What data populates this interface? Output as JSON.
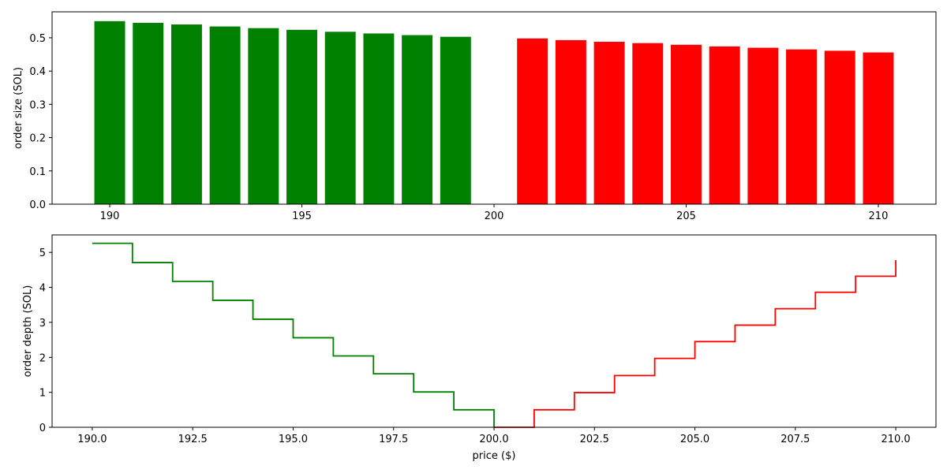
{
  "chart_data": [
    {
      "type": "bar",
      "title": "",
      "xlabel": "",
      "ylabel": "order size (SOL)",
      "xlim": [
        188.5,
        211.5
      ],
      "ylim": [
        0,
        0.578
      ],
      "xticks": [
        190,
        195,
        200,
        205,
        210
      ],
      "xtick_labels": [
        "190",
        "195",
        "200",
        "205",
        "210"
      ],
      "yticks": [
        0.0,
        0.1,
        0.2,
        0.3,
        0.4,
        0.5
      ],
      "ytick_labels": [
        "0.0",
        "0.1",
        "0.2",
        "0.3",
        "0.4",
        "0.5"
      ],
      "grid": false,
      "bar_width": 0.8,
      "series": [
        {
          "side": "bid",
          "color": "#008000",
          "x": [
            190,
            191,
            192,
            193,
            194,
            195,
            196,
            197,
            198,
            199
          ],
          "values": [
            0.55,
            0.545,
            0.54,
            0.534,
            0.529,
            0.524,
            0.518,
            0.513,
            0.508,
            0.503
          ]
        },
        {
          "side": "ask",
          "color": "#ff0000",
          "x": [
            201,
            202,
            203,
            204,
            205,
            206,
            207,
            208,
            209,
            210
          ],
          "values": [
            0.498,
            0.493,
            0.488,
            0.484,
            0.479,
            0.474,
            0.47,
            0.465,
            0.461,
            0.456
          ]
        }
      ]
    },
    {
      "type": "line",
      "subtype": "step",
      "title": "",
      "xlabel": "price ($)",
      "ylabel": "order depth (SOL)",
      "xlim": [
        189.0,
        211.0
      ],
      "ylim": [
        0,
        5.5
      ],
      "xticks": [
        190.0,
        192.5,
        195.0,
        197.5,
        200.0,
        202.5,
        205.0,
        207.5,
        210.0
      ],
      "xtick_labels": [
        "190.0",
        "192.5",
        "195.0",
        "197.5",
        "200.0",
        "202.5",
        "205.0",
        "207.5",
        "210.0"
      ],
      "yticks": [
        0,
        1,
        2,
        3,
        4,
        5
      ],
      "ytick_labels": [
        "0",
        "1",
        "2",
        "3",
        "4",
        "5"
      ],
      "grid": false,
      "series": [
        {
          "side": "bid",
          "color": "#008000",
          "x": [
            190,
            191,
            192,
            193,
            194,
            195,
            196,
            197,
            198,
            199,
            200
          ],
          "values": [
            5.26,
            4.71,
            4.17,
            3.63,
            3.09,
            2.56,
            2.04,
            1.53,
            1.01,
            0.5,
            0.0
          ]
        },
        {
          "side": "ask",
          "color": "#ff0000",
          "x": [
            200,
            201,
            202,
            203,
            204,
            205,
            206,
            207,
            208,
            209,
            210
          ],
          "values": [
            0.0,
            0.5,
            0.99,
            1.48,
            1.97,
            2.45,
            2.92,
            3.39,
            3.86,
            4.32,
            4.78
          ]
        }
      ]
    }
  ]
}
